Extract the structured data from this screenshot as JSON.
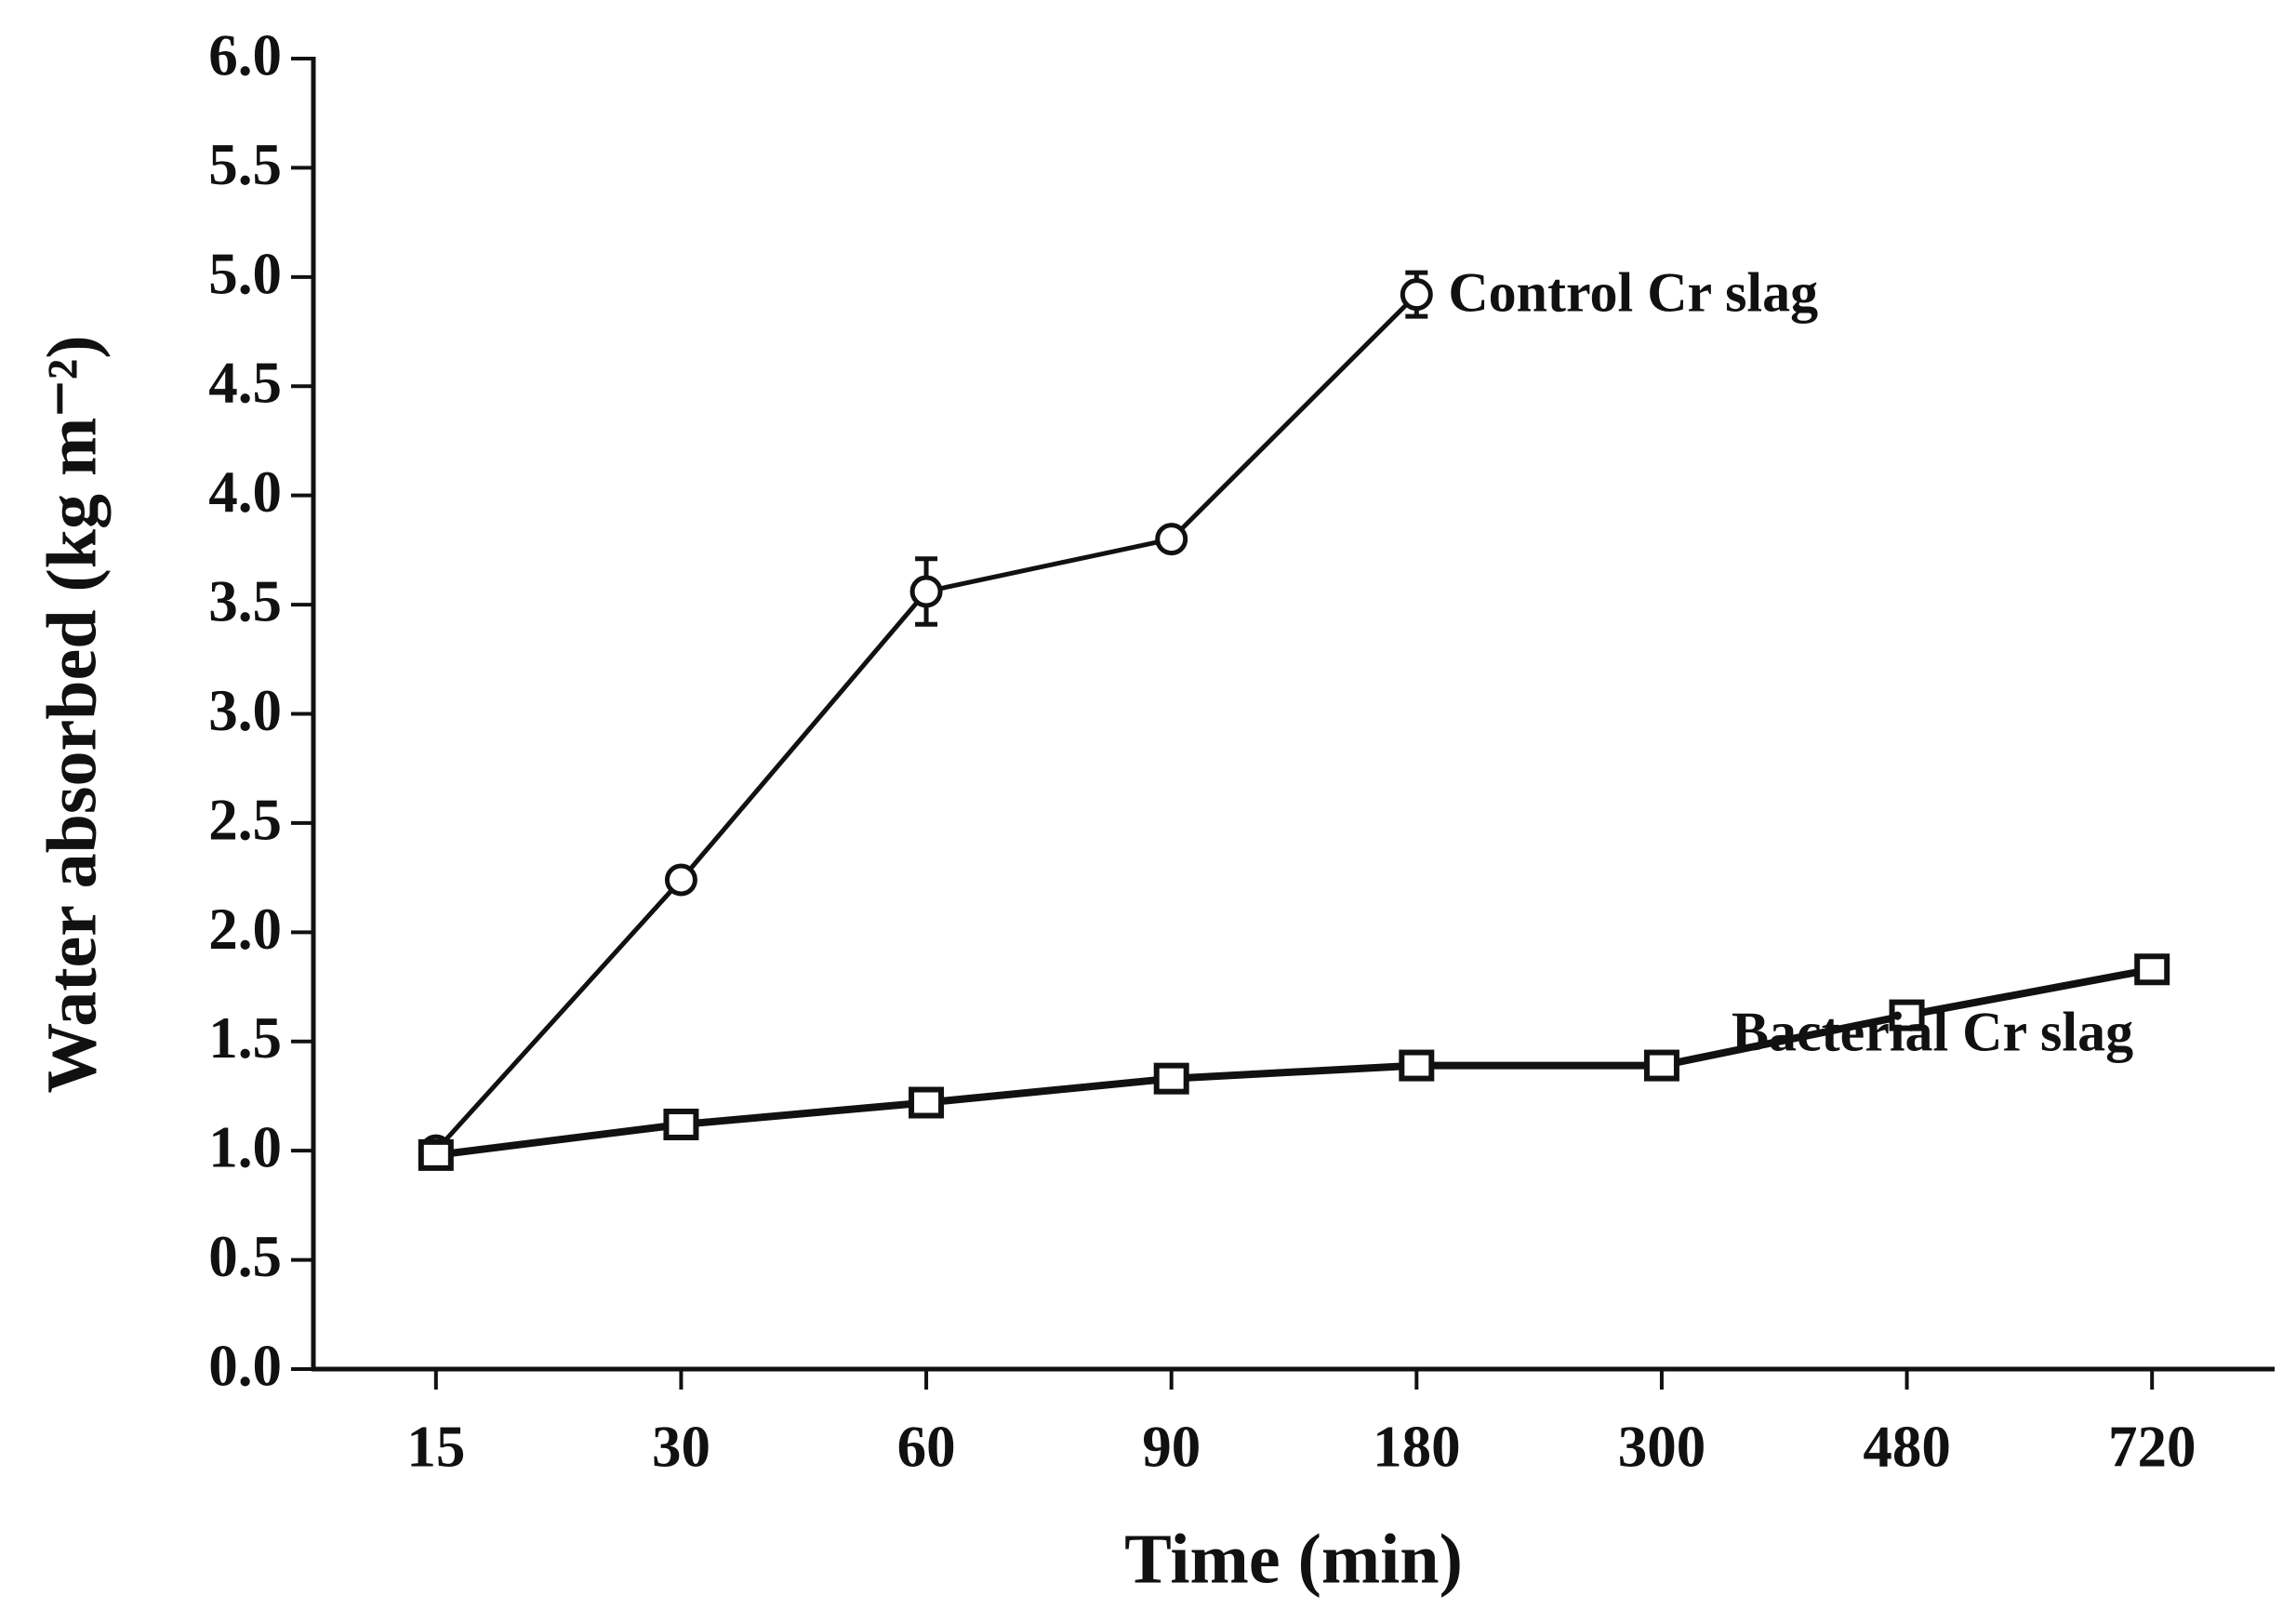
{
  "chart_data": {
    "type": "line",
    "x_label": "Time (min)",
    "y_label": "Water absorbed (kg m⁻²)",
    "categories": [
      "15",
      "30",
      "60",
      "90",
      "180",
      "300",
      "480",
      "720"
    ],
    "series": [
      {
        "name": "Control Cr slag",
        "color": "#111111",
        "marker": "circle",
        "values": [
          1.0,
          2.24,
          3.56,
          3.8,
          4.92,
          null,
          null,
          null
        ],
        "errors": [
          0.03,
          0.02,
          0.15,
          0.02,
          0.1,
          null,
          null,
          null
        ]
      },
      {
        "name": "Bacterial Cr slag",
        "color": "#111111",
        "marker": "square",
        "values": [
          0.98,
          1.12,
          1.22,
          1.33,
          1.39,
          1.39,
          1.62,
          1.83
        ]
      }
    ],
    "ylim": [
      0,
      6
    ],
    "yticks": [
      {
        "value": 0,
        "label": "0.0"
      },
      0.5,
      {
        "value": 1,
        "label": "1.0"
      },
      1.5,
      {
        "value": 2,
        "label": "2.0"
      },
      2.5,
      {
        "value": 3,
        "label": "3.0"
      },
      3.5,
      {
        "value": 4,
        "label": "4.0"
      },
      4.5,
      {
        "value": 5,
        "label": "5.0"
      },
      5.5,
      {
        "value": 6,
        "label": "6.0"
      }
    ],
    "grid": false
  }
}
